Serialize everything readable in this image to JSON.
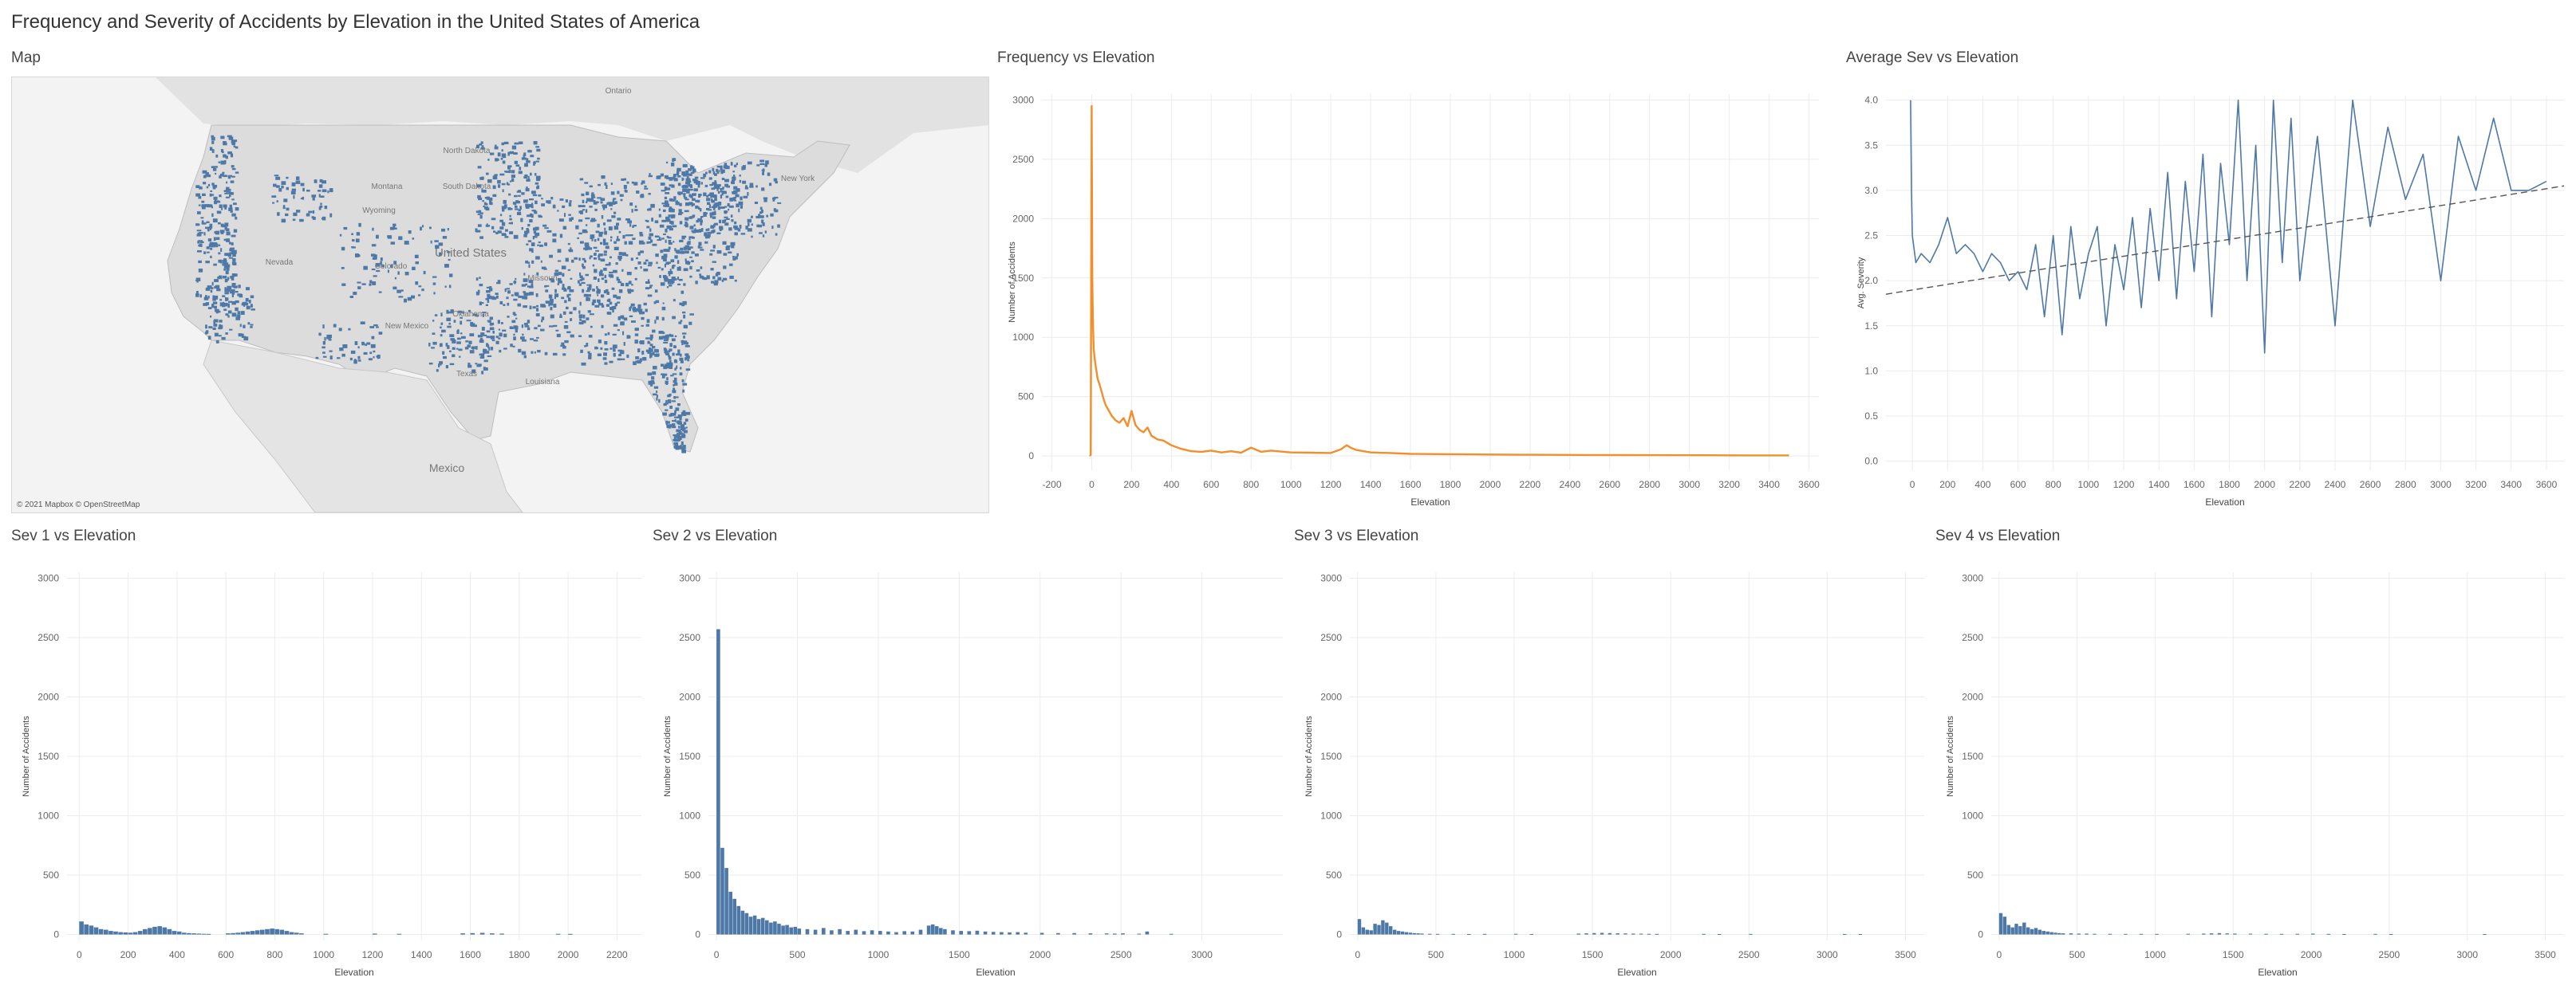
{
  "dashboard": {
    "title": "Frequency and Severity of Accidents by Elevation in the United States of America"
  },
  "map": {
    "title": "Map",
    "credit": "© 2021 Mapbox © OpenStreetMap",
    "labels": [
      "Ontario",
      "North Dakota",
      "South Dakota",
      "Montana",
      "Wyoming",
      "Nevada",
      "United States",
      "Colorado",
      "Missouri",
      "Oklahoma",
      "New Mexico",
      "Texas",
      "Louisiana",
      "New York",
      "Mexico"
    ],
    "colors": {
      "land": "#dcdcdc",
      "water": "#f3f3f3",
      "points": "#4e79a7"
    }
  },
  "colors": {
    "frequency": "#f28e2b",
    "severity": "#4e79a7",
    "grid": "#ececec",
    "trend": "#555555"
  },
  "chart_data": [
    {
      "id": "freq",
      "type": "line",
      "title": "Frequency vs Elevation",
      "xlabel": "Elevation",
      "ylabel": "Number of Accidents",
      "xlim": [
        -250,
        3650
      ],
      "ylim": [
        -120,
        3050
      ],
      "xticks": [
        -200,
        0,
        200,
        400,
        600,
        800,
        1000,
        1200,
        1400,
        1600,
        1800,
        2000,
        2200,
        2400,
        2600,
        2800,
        3000,
        3200,
        3400,
        3600
      ],
      "yticks": [
        0,
        500,
        1000,
        1500,
        2000,
        2500,
        3000
      ],
      "x": [
        -10,
        -5,
        0,
        3,
        6,
        10,
        15,
        20,
        30,
        40,
        50,
        60,
        70,
        80,
        100,
        120,
        140,
        160,
        180,
        200,
        220,
        240,
        260,
        280,
        300,
        330,
        360,
        400,
        450,
        500,
        550,
        600,
        650,
        700,
        750,
        800,
        850,
        900,
        1000,
        1100,
        1200,
        1250,
        1280,
        1300,
        1330,
        1400,
        1500,
        1600,
        1800,
        2000,
        2200,
        2500,
        2800,
        3100,
        3300,
        3500
      ],
      "y": [
        0,
        10,
        2950,
        1500,
        1150,
        900,
        820,
        760,
        650,
        600,
        540,
        480,
        430,
        400,
        340,
        300,
        280,
        320,
        250,
        380,
        260,
        220,
        200,
        240,
        170,
        140,
        130,
        90,
        60,
        40,
        35,
        45,
        30,
        40,
        28,
        70,
        35,
        45,
        30,
        28,
        25,
        55,
        90,
        70,
        50,
        30,
        25,
        18,
        15,
        12,
        10,
        8,
        7,
        6,
        5,
        5
      ]
    },
    {
      "id": "avgsev",
      "type": "line",
      "title": "Average Sev vs Elevation",
      "xlabel": "Elevation",
      "ylabel": "Avg. Severity",
      "xlim": [
        -150,
        3700
      ],
      "ylim": [
        -0.1,
        4.05
      ],
      "xticks": [
        0,
        200,
        400,
        600,
        800,
        1000,
        1200,
        1400,
        1600,
        1800,
        2000,
        2200,
        2400,
        2600,
        2800,
        3000,
        3200,
        3400,
        3600
      ],
      "yticks": [
        0.0,
        0.5,
        1.0,
        1.5,
        2.0,
        2.5,
        3.0,
        3.5,
        4.0
      ],
      "x": [
        -10,
        -5,
        0,
        20,
        50,
        100,
        150,
        200,
        250,
        300,
        350,
        400,
        450,
        500,
        550,
        600,
        650,
        700,
        750,
        800,
        850,
        900,
        950,
        1000,
        1050,
        1100,
        1150,
        1200,
        1250,
        1300,
        1350,
        1400,
        1450,
        1500,
        1550,
        1600,
        1650,
        1700,
        1750,
        1800,
        1850,
        1900,
        1950,
        2000,
        2050,
        2100,
        2150,
        2200,
        2300,
        2400,
        2500,
        2600,
        2700,
        2800,
        2900,
        3000,
        3100,
        3200,
        3300,
        3400,
        3500,
        3600
      ],
      "y": [
        4.0,
        3.0,
        2.5,
        2.2,
        2.3,
        2.2,
        2.4,
        2.7,
        2.3,
        2.4,
        2.3,
        2.1,
        2.3,
        2.2,
        2.0,
        2.1,
        1.9,
        2.4,
        1.6,
        2.5,
        1.4,
        2.6,
        1.8,
        2.3,
        2.6,
        1.5,
        2.4,
        1.9,
        2.7,
        1.7,
        2.8,
        2.0,
        3.2,
        1.8,
        3.1,
        2.1,
        3.4,
        1.6,
        3.3,
        2.4,
        4.0,
        2.0,
        3.5,
        1.2,
        4.0,
        2.2,
        3.8,
        2.0,
        3.6,
        1.5,
        4.0,
        2.6,
        3.7,
        2.9,
        3.4,
        2.0,
        3.6,
        3.0,
        3.8,
        3.0,
        3.0,
        3.1
      ],
      "trend": {
        "x": [
          -150,
          3700
        ],
        "y": [
          1.85,
          3.05
        ]
      }
    },
    {
      "id": "sev1",
      "type": "bar",
      "title": "Sev 1 vs Elevation",
      "xlabel": "Elevation",
      "ylabel": "Number of Accidents",
      "xlim": [
        -50,
        2300
      ],
      "ylim": [
        -50,
        3050
      ],
      "xticks": [
        0,
        200,
        400,
        600,
        800,
        1000,
        1200,
        1400,
        1600,
        1800,
        2000,
        2200
      ],
      "yticks": [
        0,
        500,
        1000,
        1500,
        2000,
        2500,
        3000
      ],
      "bin_width": 20,
      "x": [
        0,
        20,
        40,
        60,
        80,
        100,
        120,
        140,
        160,
        180,
        200,
        220,
        240,
        260,
        280,
        300,
        320,
        340,
        360,
        380,
        400,
        420,
        440,
        460,
        480,
        500,
        520,
        600,
        620,
        640,
        660,
        680,
        700,
        720,
        740,
        760,
        780,
        800,
        820,
        840,
        860,
        880,
        900,
        1000,
        1200,
        1300,
        1560,
        1600,
        1640,
        1680,
        1720,
        1950,
        2000
      ],
      "values": [
        110,
        85,
        75,
        60,
        45,
        40,
        30,
        25,
        20,
        18,
        15,
        20,
        30,
        45,
        55,
        65,
        70,
        60,
        45,
        30,
        25,
        15,
        12,
        10,
        8,
        6,
        5,
        10,
        12,
        15,
        20,
        25,
        30,
        35,
        40,
        45,
        50,
        45,
        40,
        30,
        20,
        15,
        10,
        6,
        8,
        6,
        10,
        12,
        14,
        10,
        8,
        6,
        5
      ]
    },
    {
      "id": "sev2",
      "type": "bar",
      "title": "Sev 2 vs Elevation",
      "xlabel": "Elevation",
      "ylabel": "Number of Accidents",
      "xlim": [
        -50,
        3500
      ],
      "ylim": [
        -50,
        3050
      ],
      "xticks": [
        0,
        500,
        1000,
        1500,
        2000,
        2500,
        3000
      ],
      "yticks": [
        0,
        500,
        1000,
        1500,
        2000,
        2500,
        3000
      ],
      "bin_width": 25,
      "x": [
        0,
        25,
        50,
        75,
        100,
        125,
        150,
        175,
        200,
        225,
        250,
        275,
        300,
        325,
        350,
        375,
        400,
        425,
        450,
        475,
        500,
        550,
        600,
        650,
        700,
        750,
        800,
        850,
        900,
        950,
        1000,
        1050,
        1100,
        1150,
        1200,
        1250,
        1300,
        1325,
        1350,
        1375,
        1400,
        1450,
        1500,
        1550,
        1600,
        1650,
        1700,
        1750,
        1800,
        1850,
        1900,
        2000,
        2100,
        2200,
        2300,
        2400,
        2450,
        2500,
        2600,
        2650,
        2800
      ],
      "values": [
        2570,
        730,
        560,
        360,
        300,
        240,
        200,
        180,
        150,
        160,
        130,
        140,
        120,
        100,
        110,
        90,
        75,
        80,
        60,
        65,
        50,
        45,
        40,
        55,
        35,
        45,
        30,
        40,
        28,
        35,
        30,
        25,
        20,
        28,
        25,
        40,
        75,
        85,
        70,
        55,
        45,
        35,
        30,
        28,
        32,
        25,
        22,
        20,
        18,
        20,
        15,
        14,
        12,
        12,
        10,
        9,
        8,
        10,
        7,
        25,
        6
      ]
    },
    {
      "id": "sev3",
      "type": "bar",
      "title": "Sev 3 vs Elevation",
      "xlabel": "Elevation",
      "ylabel": "Number of Accidents",
      "xlim": [
        -50,
        3620
      ],
      "ylim": [
        -50,
        3050
      ],
      "xticks": [
        0,
        500,
        1000,
        1500,
        2000,
        2500,
        3000,
        3500
      ],
      "yticks": [
        0,
        500,
        1000,
        1500,
        2000,
        2500,
        3000
      ],
      "bin_width": 25,
      "x": [
        0,
        25,
        50,
        75,
        100,
        125,
        150,
        175,
        200,
        225,
        250,
        275,
        300,
        325,
        350,
        375,
        400,
        450,
        500,
        600,
        700,
        800,
        1000,
        1100,
        1400,
        1450,
        1500,
        1550,
        1600,
        1650,
        1700,
        1750,
        1800,
        1850,
        1900,
        2200,
        2300,
        2500,
        3100,
        3200
      ],
      "values": [
        130,
        60,
        40,
        35,
        90,
        80,
        120,
        100,
        70,
        40,
        30,
        25,
        20,
        15,
        12,
        10,
        8,
        6,
        5,
        5,
        4,
        5,
        6,
        4,
        8,
        10,
        12,
        14,
        12,
        10,
        9,
        8,
        7,
        6,
        5,
        5,
        4,
        5,
        4,
        4
      ]
    },
    {
      "id": "sev4",
      "type": "bar",
      "title": "Sev 4 vs Elevation",
      "xlabel": "Elevation",
      "ylabel": "Number of Accidents",
      "xlim": [
        -50,
        3620
      ],
      "ylim": [
        -50,
        3050
      ],
      "xticks": [
        0,
        500,
        1000,
        1500,
        2000,
        2500,
        3000,
        3500
      ],
      "yticks": [
        0,
        500,
        1000,
        1500,
        2000,
        2500,
        3000
      ],
      "bin_width": 25,
      "x": [
        0,
        25,
        50,
        75,
        100,
        125,
        150,
        175,
        200,
        225,
        250,
        275,
        300,
        325,
        350,
        375,
        400,
        450,
        500,
        550,
        600,
        700,
        800,
        900,
        1000,
        1200,
        1300,
        1350,
        1400,
        1450,
        1500,
        1600,
        1700,
        1800,
        1900,
        2000,
        2100,
        2200,
        2400,
        2500,
        3100
      ],
      "values": [
        180,
        150,
        80,
        60,
        90,
        70,
        100,
        60,
        45,
        55,
        40,
        30,
        25,
        20,
        15,
        12,
        10,
        10,
        8,
        8,
        6,
        6,
        5,
        5,
        5,
        6,
        8,
        10,
        12,
        9,
        8,
        7,
        6,
        5,
        6,
        8,
        5,
        4,
        5,
        4,
        3
      ]
    }
  ]
}
